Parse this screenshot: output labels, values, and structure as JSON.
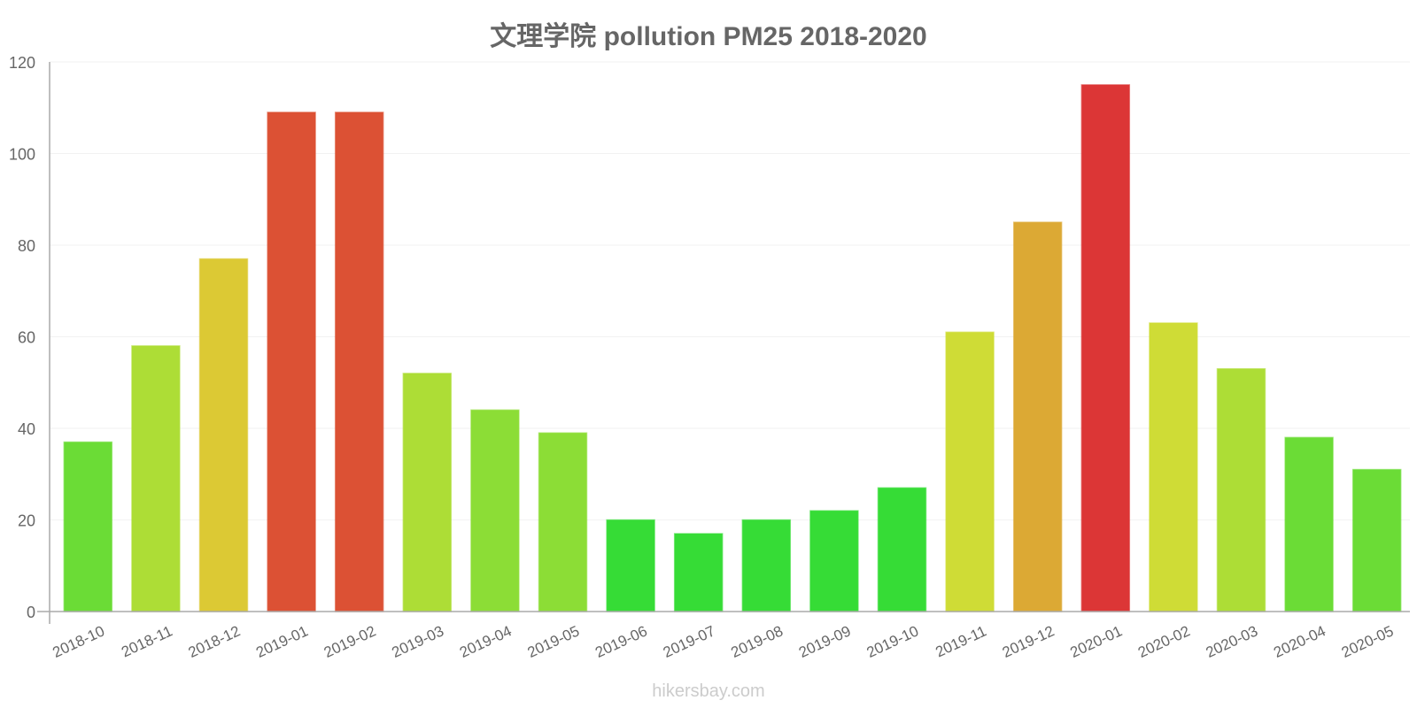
{
  "title": "文理学院 pollution PM25 2018-2020",
  "footer": "hikersbay.com",
  "chart_data": {
    "type": "bar",
    "title": "文理学院 pollution PM25 2018-2020",
    "xlabel": "",
    "ylabel": "",
    "ylim": [
      0,
      120
    ],
    "yticks": [
      0,
      20,
      40,
      60,
      80,
      100,
      120
    ],
    "grid": true,
    "legend": "none",
    "categories": [
      "2018-10",
      "2018-11",
      "2018-12",
      "2019-01",
      "2019-02",
      "2019-03",
      "2019-04",
      "2019-05",
      "2019-06",
      "2019-07",
      "2019-08",
      "2019-09",
      "2019-10",
      "2019-11",
      "2019-12",
      "2020-01",
      "2020-02",
      "2020-03",
      "2020-04",
      "2020-05"
    ],
    "series": [
      {
        "name": "PM25",
        "values": [
          37,
          58,
          77,
          109,
          109,
          52,
          44,
          39,
          20,
          17,
          20,
          22,
          27,
          61,
          85,
          115,
          63,
          53,
          38,
          31
        ],
        "colors": [
          "#6bdc36",
          "#addd36",
          "#dcc934",
          "#dc5134",
          "#dc5134",
          "#addd36",
          "#8cdd36",
          "#8cdd36",
          "#36dc36",
          "#36dc36",
          "#36dc36",
          "#36dc36",
          "#36dc36",
          "#cfdc36",
          "#dca934",
          "#dc3636",
          "#cfdc36",
          "#addd36",
          "#6bdc36",
          "#6bdc36"
        ]
      }
    ]
  },
  "colors": {
    "title": "#666666",
    "axis_text": "#666666",
    "axis_line": "#aaaaaa",
    "grid": "#f2f2f2",
    "footer": "#cccccc"
  }
}
